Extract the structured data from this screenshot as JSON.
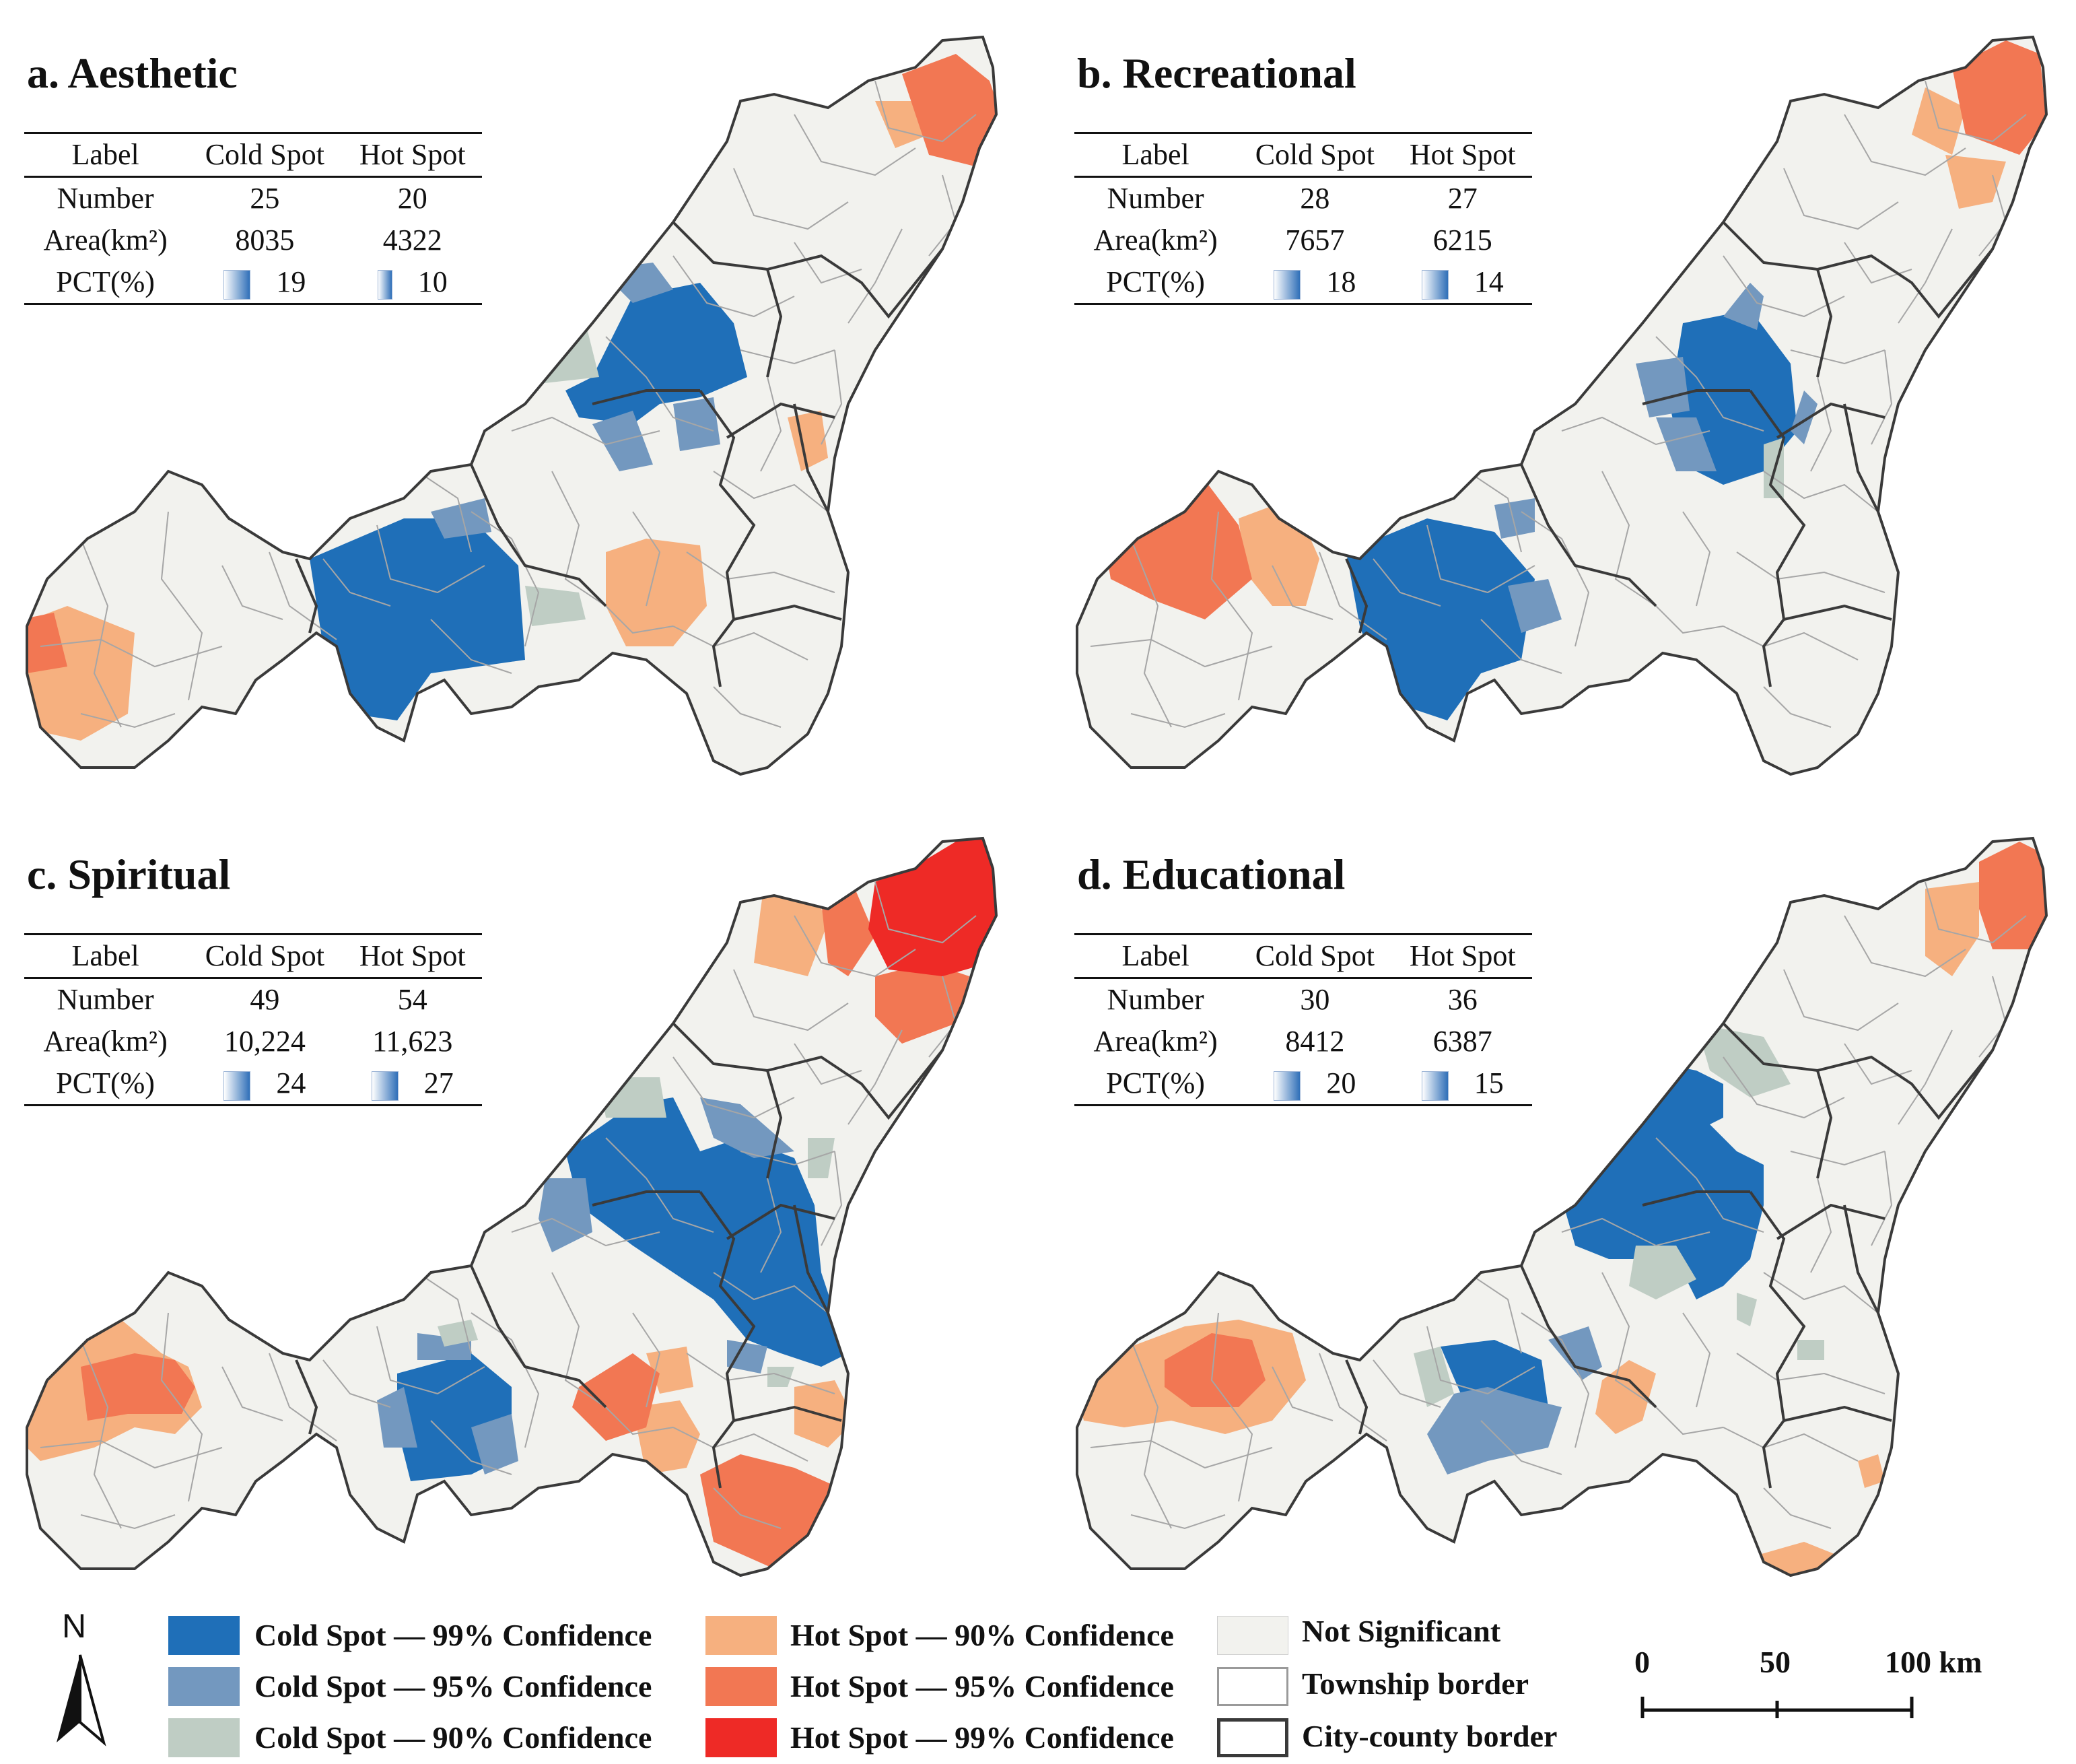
{
  "panels": [
    {
      "title": "a. Aesthetic",
      "table": {
        "col_label": "Label",
        "col_cold": "Cold Spot",
        "col_hot": "Hot Spot",
        "rows": [
          {
            "label": "Number",
            "cold": "25",
            "hot": "20"
          },
          {
            "label": "Area(km²)",
            "cold": "8035",
            "hot": "4322"
          },
          {
            "label": "PCT(%)",
            "cold": "19",
            "hot": "10"
          }
        ]
      }
    },
    {
      "title": "b. Recreational",
      "table": {
        "col_label": "Label",
        "col_cold": "Cold Spot",
        "col_hot": "Hot Spot",
        "rows": [
          {
            "label": "Number",
            "cold": "28",
            "hot": "27"
          },
          {
            "label": "Area(km²)",
            "cold": "7657",
            "hot": "6215"
          },
          {
            "label": "PCT(%)",
            "cold": "18",
            "hot": "14"
          }
        ]
      }
    },
    {
      "title": "c. Spiritual",
      "table": {
        "col_label": "Label",
        "col_cold": "Cold Spot",
        "col_hot": "Hot Spot",
        "rows": [
          {
            "label": "Number",
            "cold": "49",
            "hot": "54"
          },
          {
            "label": "Area(km²)",
            "cold": "10,224",
            "hot": "11,623"
          },
          {
            "label": "PCT(%)",
            "cold": "24",
            "hot": "27"
          }
        ]
      }
    },
    {
      "title": "d. Educational",
      "table": {
        "col_label": "Label",
        "col_cold": "Cold Spot",
        "col_hot": "Hot Spot",
        "rows": [
          {
            "label": "Number",
            "cold": "30",
            "hot": "36"
          },
          {
            "label": "Area(km²)",
            "cold": "8412",
            "hot": "6387"
          },
          {
            "label": "PCT(%)",
            "cold": "20",
            "hot": "15"
          }
        ]
      }
    }
  ],
  "legend": {
    "cold99": "Cold Spot — 99% Confidence",
    "cold95": "Cold Spot — 95% Confidence",
    "cold90": "Cold Spot — 90% Confidence",
    "hot90": "Hot Spot — 90% Confidence",
    "hot95": "Hot Spot — 95% Confidence",
    "hot99": "Hot Spot — 99% Confidence",
    "ns": "Not Significant",
    "township": "Township border",
    "city": "City-county border"
  },
  "colors": {
    "cold99": "#1f6fb8",
    "cold95": "#7398bf",
    "cold90": "#bfcdc4",
    "hot90": "#f6b07f",
    "hot95": "#f27753",
    "hot99": "#ee2a26",
    "ns": "#f2f2ee",
    "township": "#9a9a9a",
    "city": "#3a3a3a"
  },
  "north": {
    "label": "N"
  },
  "scale": {
    "t0": "0",
    "t1": "50",
    "t2": "100 km"
  }
}
